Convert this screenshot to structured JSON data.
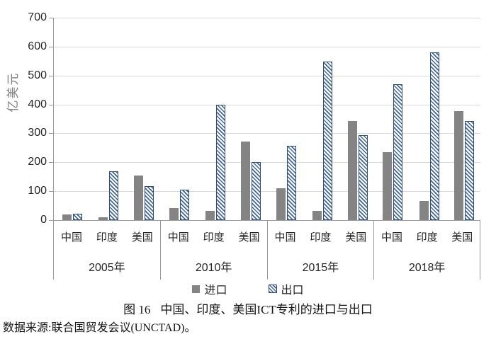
{
  "colors": {
    "import_gray": "#848484",
    "export_blue": "#44679b",
    "export_border": "#2e4d7b",
    "gridline": "#d9d9d9",
    "axis_gray": "#9b9b9b",
    "text": "#262626"
  },
  "chart_data": {
    "type": "bar",
    "title": "图 16 中国、印度、美国ICT专利的进口与出口",
    "ylabel": "亿美元",
    "xlabel": "",
    "ylim": [
      0,
      700
    ],
    "ytick_step": 100,
    "grid": true,
    "legend_position": "bottom",
    "group_labels": [
      "2005年",
      "2010年",
      "2015年",
      "2018年"
    ],
    "sub_labels": [
      "中国",
      "印度",
      "美国"
    ],
    "series": [
      {
        "name": "进口",
        "style": "solid-gray",
        "values": [
          [
            20,
            10,
            153
          ],
          [
            42,
            31,
            272
          ],
          [
            110,
            32,
            342
          ],
          [
            236,
            65,
            378
          ]
        ]
      },
      {
        "name": "出口",
        "style": "blue-hatched",
        "values": [
          [
            23,
            168,
            117
          ],
          [
            106,
            400,
            200
          ],
          [
            257,
            548,
            293
          ],
          [
            470,
            580,
            343
          ]
        ]
      }
    ]
  },
  "legend": {
    "import_label": "进口",
    "export_label": "出口"
  },
  "caption": {
    "figure_label": "图 16",
    "title": "中国、印度、美国ICT专利的进口与出口"
  },
  "source_note": "数据来源:联合国贸发会议(UNCTAD)。"
}
